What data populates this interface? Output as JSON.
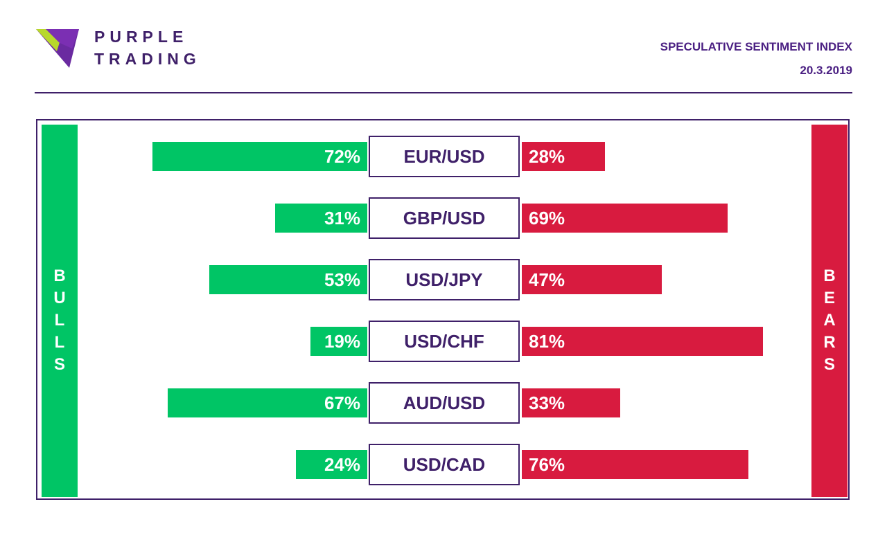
{
  "brand": {
    "line1": "PURPLE",
    "line2": "TRADING"
  },
  "header": {
    "title": "SPECULATIVE SENTIMENT INDEX",
    "date": "20.3.2019"
  },
  "labels": {
    "bulls": "BULLS",
    "bears": "BEARS"
  },
  "colors": {
    "bull": "#00c565",
    "bear": "#d81b3f",
    "purple": "#3f2069"
  },
  "chart_data": {
    "type": "bar",
    "categories": [
      "EUR/USD",
      "GBP/USD",
      "USD/JPY",
      "USD/CHF",
      "AUD/USD",
      "USD/CAD"
    ],
    "series": [
      {
        "name": "BULLS",
        "values": [
          72,
          31,
          53,
          19,
          67,
          24
        ]
      },
      {
        "name": "BEARS",
        "values": [
          28,
          69,
          47,
          81,
          33,
          76
        ]
      }
    ],
    "unit": "%",
    "ylim": [
      0,
      100
    ]
  }
}
